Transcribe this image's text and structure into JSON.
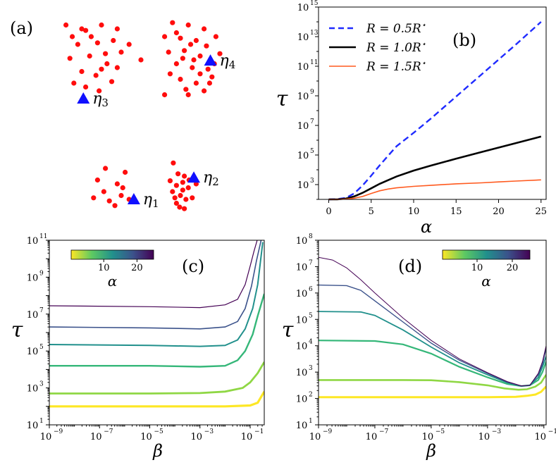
{
  "chart_data": [
    {
      "panel": "(a)",
      "type": "scatter",
      "title": "(a)",
      "clusters": [
        {
          "name": "η3",
          "label_main": "η",
          "label_sub": "3",
          "marker": [
            0.52,
            1.0
          ],
          "points": [
            [
              0.3,
              0.05
            ],
            [
              0.55,
              0.12
            ],
            [
              0.75,
              0.05
            ],
            [
              0.95,
              0.1
            ],
            [
              0.45,
              0.3
            ],
            [
              0.7,
              0.28
            ],
            [
              0.9,
              0.25
            ],
            [
              0.35,
              0.48
            ],
            [
              0.6,
              0.45
            ],
            [
              0.8,
              0.42
            ],
            [
              1.0,
              0.4
            ],
            [
              0.5,
              0.65
            ],
            [
              0.75,
              0.62
            ],
            [
              0.95,
              0.6
            ],
            [
              1.25,
              0.5
            ],
            [
              0.4,
              0.8
            ],
            [
              0.88,
              0.78
            ],
            [
              0.62,
              0.2
            ],
            [
              0.82,
              0.55
            ],
            [
              0.68,
              0.7
            ],
            [
              1.1,
              0.3
            ],
            [
              0.38,
              0.2
            ],
            [
              0.5,
              0.1
            ],
            [
              0.72,
              0.9
            ],
            [
              0.55,
              0.85
            ]
          ]
        },
        {
          "name": "η4",
          "label_main": "η",
          "label_sub": "4",
          "marker": [
            2.13,
            0.51
          ],
          "points": [
            [
              1.65,
              0.02
            ],
            [
              1.85,
              0.05
            ],
            [
              2.05,
              0.1
            ],
            [
              1.55,
              0.2
            ],
            [
              1.75,
              0.22
            ],
            [
              1.95,
              0.25
            ],
            [
              2.2,
              0.2
            ],
            [
              1.6,
              0.4
            ],
            [
              1.8,
              0.38
            ],
            [
              2.0,
              0.45
            ],
            [
              2.25,
              0.42
            ],
            [
              1.7,
              0.55
            ],
            [
              1.9,
              0.6
            ],
            [
              2.1,
              0.62
            ],
            [
              1.75,
              0.75
            ],
            [
              1.95,
              0.8
            ],
            [
              2.15,
              0.72
            ],
            [
              1.55,
              0.95
            ],
            [
              1.85,
              0.95
            ],
            [
              2.05,
              0.9
            ],
            [
              1.7,
              0.15
            ],
            [
              1.88,
              0.3
            ],
            [
              2.08,
              0.32
            ],
            [
              1.62,
              0.68
            ],
            [
              2.0,
              0.68
            ],
            [
              1.78,
              0.48
            ],
            [
              1.92,
              0.5
            ],
            [
              2.18,
              0.55
            ],
            [
              1.82,
              0.88
            ],
            [
              2.12,
              0.8
            ]
          ]
        },
        {
          "name": "η1",
          "label_main": "η",
          "label_sub": "1",
          "marker": [
            1.16,
            2.3
          ],
          "points": [
            [
              0.8,
              1.9
            ],
            [
              1.05,
              1.95
            ],
            [
              0.7,
              2.05
            ],
            [
              0.95,
              2.1
            ],
            [
              0.78,
              2.2
            ],
            [
              1.0,
              2.25
            ],
            [
              0.85,
              2.32
            ],
            [
              1.1,
              2.3
            ],
            [
              0.65,
              2.28
            ],
            [
              0.92,
              2.38
            ],
            [
              1.02,
              2.15
            ]
          ]
        },
        {
          "name": "η2",
          "label_main": "η",
          "label_sub": "2",
          "marker": [
            1.92,
            2.02
          ],
          "points": [
            [
              1.66,
              1.83
            ],
            [
              1.72,
              1.97
            ],
            [
              1.62,
              2.06
            ],
            [
              1.78,
              2.08
            ],
            [
              1.8,
              2.0
            ],
            [
              1.7,
              2.12
            ],
            [
              1.85,
              2.15
            ],
            [
              1.65,
              2.2
            ],
            [
              1.75,
              2.25
            ],
            [
              1.82,
              2.3
            ],
            [
              1.7,
              2.35
            ],
            [
              1.9,
              2.28
            ],
            [
              1.78,
              2.18
            ],
            [
              1.86,
              2.05
            ],
            [
              1.68,
              2.28
            ],
            [
              1.74,
              2.4
            ],
            [
              1.95,
              2.1
            ],
            [
              1.8,
              2.42
            ]
          ]
        }
      ]
    },
    {
      "panel": "(b)",
      "type": "line",
      "title": "(b)",
      "xlabel": "α",
      "ylabel": "τ",
      "xlim": [
        -1.2,
        25.6
      ],
      "ylim_log10": [
        2.0,
        15.0
      ],
      "x_ticks": [
        0,
        5,
        10,
        15,
        20,
        25
      ],
      "x_tick_labels": [
        "0",
        "5",
        "10",
        "15",
        "20",
        "25"
      ],
      "y_ticks": [
        3,
        5,
        7,
        9,
        11,
        13,
        15
      ],
      "y_tick_labels": [
        "10",
        "10",
        "10",
        "10",
        "10",
        "10",
        "10"
      ],
      "y_tick_exponents": [
        "3",
        "5",
        "7",
        "9",
        "11",
        "13",
        "15"
      ],
      "legend": [
        {
          "label": "R = 0.5R",
          "star": "⋆",
          "color": "#1f2bff",
          "dash": true
        },
        {
          "label": "R = 1.0R",
          "star": "⋆",
          "color": "#000000",
          "dash": false
        },
        {
          "label": "R = 1.5R",
          "star": "⋆",
          "color": "#ff5a1f",
          "dash": false
        }
      ],
      "series": [
        {
          "name": "R = 0.5R⋆",
          "color": "#1f2bff",
          "dash": true,
          "width": 2.4,
          "x": [
            0,
            1,
            2,
            3,
            4,
            5,
            6,
            7,
            8,
            10,
            12,
            15,
            18,
            20,
            22,
            25
          ],
          "y_log10": [
            2.0,
            2.02,
            2.1,
            2.4,
            2.95,
            3.6,
            4.3,
            4.95,
            5.6,
            6.5,
            7.45,
            8.95,
            10.45,
            11.45,
            12.45,
            14.0
          ]
        },
        {
          "name": "R = 1.0R⋆",
          "color": "#000000",
          "dash": false,
          "width": 2.6,
          "x": [
            0,
            1,
            2,
            3,
            4,
            5,
            6,
            7,
            8,
            10,
            12,
            15,
            18,
            20,
            22,
            25
          ],
          "y_log10": [
            2.0,
            2.0,
            2.05,
            2.2,
            2.45,
            2.75,
            3.05,
            3.3,
            3.55,
            3.95,
            4.28,
            4.75,
            5.2,
            5.5,
            5.8,
            6.25
          ]
        },
        {
          "name": "R = 1.5R⋆",
          "color": "#ff5a1f",
          "dash": false,
          "width": 1.6,
          "x": [
            0,
            1,
            2,
            3,
            4,
            5,
            6,
            7,
            8,
            10,
            12,
            15,
            18,
            20,
            22,
            25
          ],
          "y_log10": [
            2.0,
            2.0,
            2.02,
            2.08,
            2.2,
            2.4,
            2.58,
            2.7,
            2.78,
            2.88,
            2.95,
            3.05,
            3.12,
            3.18,
            3.24,
            3.32
          ]
        }
      ]
    },
    {
      "panel": "(c)",
      "type": "line",
      "title": "(c)",
      "xlabel": "β",
      "ylabel": "τ",
      "xlim_log10": [
        -9.0,
        -0.44
      ],
      "ylim_log10": [
        1,
        11
      ],
      "x_ticks": [
        -9,
        -7,
        -5,
        -3,
        -1
      ],
      "x_tick_labels": [
        "10",
        "10",
        "10",
        "10",
        "10"
      ],
      "x_tick_exponents": [
        "−9",
        "−7",
        "−5",
        "−3",
        "−1"
      ],
      "y_ticks": [
        1,
        3,
        5,
        7,
        9,
        11
      ],
      "y_tick_labels": [
        "10",
        "10",
        "10",
        "10",
        "10",
        "10"
      ],
      "y_tick_exponents": [
        "1",
        "3",
        "5",
        "7",
        "9",
        "11"
      ],
      "colorbar": {
        "label": "α",
        "ticks": [
          "10",
          "20"
        ],
        "tick_values": [
          10,
          20
        ],
        "range": [
          0.2,
          25
        ]
      },
      "series": [
        {
          "alpha": 0.3,
          "color": "#fde725",
          "width": 3.2,
          "x": [
            -9,
            -5,
            -2,
            -1,
            -0.7,
            -0.44
          ],
          "y_log10": [
            2.0,
            2.0,
            2.0,
            2.05,
            2.2,
            2.8
          ]
        },
        {
          "alpha": 4,
          "color": "#8fd744",
          "width": 2.8,
          "x": [
            -9,
            -5,
            -3,
            -2,
            -1.3,
            -1,
            -0.7,
            -0.44
          ],
          "y_log10": [
            2.7,
            2.7,
            2.72,
            2.8,
            3.0,
            3.3,
            3.8,
            4.4
          ]
        },
        {
          "alpha": 8,
          "color": "#35b779",
          "width": 2.4,
          "x": [
            -9,
            -5,
            -3,
            -2,
            -1.5,
            -1.2,
            -0.9,
            -0.7,
            -0.44
          ],
          "y_log10": [
            4.2,
            4.2,
            4.15,
            4.2,
            4.5,
            5.0,
            5.9,
            6.9,
            8.1
          ]
        },
        {
          "alpha": 13,
          "color": "#21908c",
          "width": 2.0,
          "x": [
            -9,
            -5,
            -3,
            -2,
            -1.5,
            -1.2,
            -0.9,
            -0.7,
            -0.5
          ],
          "y_log10": [
            5.35,
            5.3,
            5.25,
            5.3,
            5.6,
            6.2,
            7.3,
            8.6,
            10.9
          ]
        },
        {
          "alpha": 18,
          "color": "#3b528b",
          "width": 1.6,
          "x": [
            -9,
            -5,
            -3,
            -2,
            -1.5,
            -1.2,
            -0.95,
            -0.75,
            -0.55
          ],
          "y_log10": [
            6.3,
            6.25,
            6.2,
            6.3,
            6.6,
            7.3,
            8.5,
            9.9,
            11.1
          ]
        },
        {
          "alpha": 25,
          "color": "#440154",
          "width": 1.2,
          "x": [
            -9,
            -5,
            -3,
            -2,
            -1.5,
            -1.2,
            -1.0,
            -0.85,
            -0.7
          ],
          "y_log10": [
            7.45,
            7.4,
            7.35,
            7.5,
            7.8,
            8.6,
            9.6,
            10.4,
            11.1
          ]
        }
      ]
    },
    {
      "panel": "(d)",
      "type": "line",
      "title": "(d)",
      "xlabel": "β",
      "ylabel": "τ",
      "xlim_log10": [
        -9.0,
        -0.92
      ],
      "ylim_log10": [
        1,
        8
      ],
      "x_ticks": [
        -9,
        -7,
        -5,
        -3,
        -1
      ],
      "x_tick_labels": [
        "10",
        "10",
        "10",
        "10",
        "10"
      ],
      "x_tick_exponents": [
        "−9",
        "−7",
        "−5",
        "−3",
        "−1"
      ],
      "y_ticks": [
        1,
        2,
        3,
        4,
        5,
        6,
        7,
        8
      ],
      "y_tick_labels": [
        "10",
        "10",
        "10",
        "10",
        "10",
        "10",
        "10",
        "10"
      ],
      "y_tick_exponents": [
        "1",
        "2",
        "3",
        "4",
        "5",
        "6",
        "7",
        "8"
      ],
      "colorbar": {
        "label": "α",
        "ticks": [
          "10",
          "20"
        ],
        "tick_values": [
          10,
          20
        ],
        "range": [
          0.2,
          25
        ]
      },
      "series": [
        {
          "alpha": 0.3,
          "color": "#fde725",
          "width": 3.0,
          "x": [
            -9,
            -6,
            -3,
            -2,
            -1.6,
            -1.3,
            -1.1,
            -0.92
          ],
          "y_log10": [
            2.05,
            2.05,
            2.05,
            2.06,
            2.1,
            2.15,
            2.25,
            2.45
          ]
        },
        {
          "alpha": 4,
          "color": "#8fd744",
          "width": 2.6,
          "x": [
            -9,
            -6,
            -5,
            -4,
            -3,
            -2.4,
            -1.9,
            -1.6,
            -1.3,
            -1.1,
            -0.92
          ],
          "y_log10": [
            2.7,
            2.7,
            2.69,
            2.62,
            2.5,
            2.38,
            2.33,
            2.35,
            2.45,
            2.6,
            2.9
          ]
        },
        {
          "alpha": 8,
          "color": "#35b779",
          "width": 2.2,
          "x": [
            -9,
            -7,
            -6,
            -5,
            -4,
            -3,
            -2.3,
            -1.8,
            -1.5,
            -1.2,
            -1.05,
            -0.92
          ],
          "y_log10": [
            4.2,
            4.18,
            4.05,
            3.7,
            3.2,
            2.8,
            2.55,
            2.47,
            2.5,
            2.7,
            3.0,
            3.4
          ]
        },
        {
          "alpha": 13,
          "color": "#21908c",
          "width": 1.8,
          "x": [
            -9,
            -7.5,
            -7,
            -6,
            -5,
            -4,
            -3,
            -2.3,
            -1.8,
            -1.5,
            -1.2,
            -1.05,
            -0.92
          ],
          "y_log10": [
            5.3,
            5.28,
            5.15,
            4.6,
            3.95,
            3.35,
            2.9,
            2.6,
            2.47,
            2.5,
            2.8,
            3.2,
            3.6
          ]
        },
        {
          "alpha": 18,
          "color": "#3b528b",
          "width": 1.4,
          "x": [
            -9,
            -8,
            -7.5,
            -7,
            -6,
            -5,
            -4,
            -3,
            -2.3,
            -1.8,
            -1.5,
            -1.2,
            -1.05,
            -0.92
          ],
          "y_log10": [
            6.3,
            6.28,
            6.1,
            5.7,
            4.9,
            4.1,
            3.45,
            2.95,
            2.62,
            2.47,
            2.5,
            2.9,
            3.3,
            3.9
          ]
        },
        {
          "alpha": 25,
          "color": "#440154",
          "width": 1.0,
          "x": [
            -9,
            -8.5,
            -8,
            -7.5,
            -7,
            -6,
            -5,
            -4,
            -3,
            -2.3,
            -1.8,
            -1.5,
            -1.2,
            -1.05,
            -0.92
          ],
          "y_log10": [
            7.35,
            7.25,
            6.95,
            6.5,
            6.0,
            5.05,
            4.2,
            3.5,
            2.98,
            2.64,
            2.48,
            2.5,
            2.95,
            3.4,
            4.0
          ]
        }
      ]
    }
  ]
}
